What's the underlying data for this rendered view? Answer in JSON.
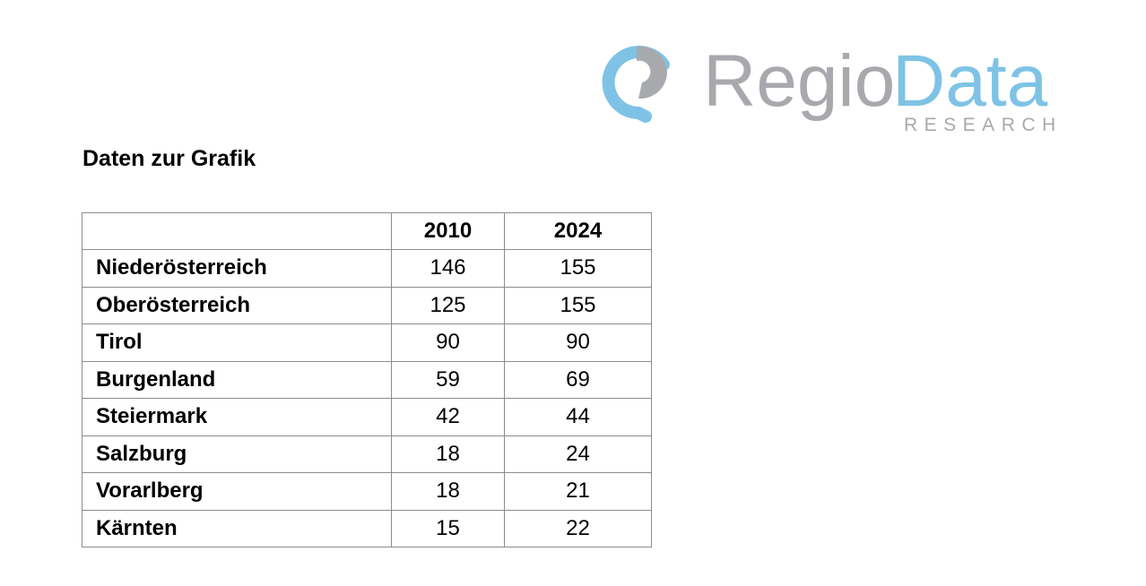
{
  "logo": {
    "word_1": "Regio",
    "word_2": "Data",
    "tagline": "RESEARCH"
  },
  "heading": "Daten zur Grafik",
  "table": {
    "columns": [
      "2010",
      "2024"
    ],
    "rows": [
      {
        "label": "Niederösterreich",
        "values": [
          146,
          155
        ]
      },
      {
        "label": "Oberösterreich",
        "values": [
          125,
          155
        ]
      },
      {
        "label": "Tirol",
        "values": [
          90,
          90
        ]
      },
      {
        "label": "Burgenland",
        "values": [
          59,
          69
        ]
      },
      {
        "label": "Steiermark",
        "values": [
          42,
          44
        ]
      },
      {
        "label": "Salzburg",
        "values": [
          18,
          24
        ]
      },
      {
        "label": "Vorarlberg",
        "values": [
          18,
          21
        ]
      },
      {
        "label": "Kärnten",
        "values": [
          15,
          22
        ]
      }
    ]
  }
}
